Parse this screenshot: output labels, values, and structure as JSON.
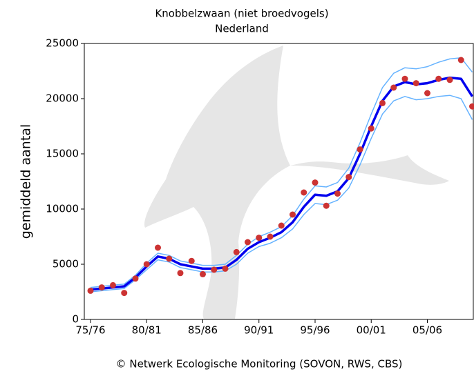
{
  "chart_data": {
    "type": "line",
    "title": "Knobbelzwaan (niet broedvogels)",
    "subtitle": "Nederland",
    "y_label": "gemiddeld aantal",
    "footer": "© Netwerk Ecologische Monitoring (SOVON, RWS, CBS)",
    "categories": [
      "75/76",
      null,
      null,
      null,
      null,
      "80/81",
      null,
      null,
      null,
      null,
      "85/86",
      null,
      null,
      null,
      null,
      "90/91",
      null,
      null,
      null,
      null,
      "95/96",
      null,
      null,
      null,
      null,
      "00/01",
      null,
      null,
      null,
      null,
      "05/06",
      null,
      null,
      null,
      null
    ],
    "ylim": [
      0,
      25000
    ],
    "yticks": [
      0,
      5000,
      10000,
      15000,
      20000,
      25000
    ],
    "series": [
      {
        "type": "line",
        "color": "#66b3ff",
        "values": [
          2900,
          3000,
          3100,
          3200,
          4000,
          5100,
          6000,
          5800,
          5300,
          5100,
          4900,
          4900,
          5000,
          5800,
          6800,
          7500,
          7900,
          8400,
          9400,
          10900,
          12100,
          12000,
          12400,
          13700,
          16000,
          18600,
          21000,
          22300,
          22800,
          22700,
          22900,
          23300,
          23600,
          23700,
          22400
        ]
      },
      {
        "type": "line",
        "color": "#66b3ff",
        "values": [
          2500,
          2600,
          2700,
          2800,
          3600,
          4500,
          5400,
          5200,
          4700,
          4500,
          4300,
          4300,
          4400,
          5000,
          6000,
          6600,
          6900,
          7400,
          8200,
          9500,
          10500,
          10400,
          10800,
          11900,
          14000,
          16400,
          18600,
          19800,
          20200,
          19900,
          20000,
          20200,
          20300,
          20000,
          18100
        ]
      },
      {
        "type": "line",
        "color": "#0000ee",
        "values": [
          2700,
          2800,
          2900,
          3000,
          3800,
          4800,
          5700,
          5500,
          5000,
          4800,
          4600,
          4600,
          4700,
          5400,
          6400,
          7000,
          7400,
          7900,
          8800,
          10200,
          11300,
          11200,
          11600,
          12800,
          15000,
          17500,
          19800,
          21100,
          21500,
          21300,
          21400,
          21700,
          21900,
          21800,
          20200
        ]
      },
      {
        "type": "scatter",
        "color": "#cc3333",
        "values": [
          2600,
          2900,
          3100,
          2400,
          3700,
          5000,
          6500,
          5500,
          4200,
          5300,
          4100,
          4500,
          4600,
          6100,
          7000,
          7400,
          7500,
          8500,
          9500,
          11500,
          12400,
          10300,
          11400,
          12900,
          15400,
          17300,
          19600,
          21000,
          21800,
          21400,
          20500,
          21800,
          21700,
          23500,
          19300
        ]
      }
    ]
  }
}
